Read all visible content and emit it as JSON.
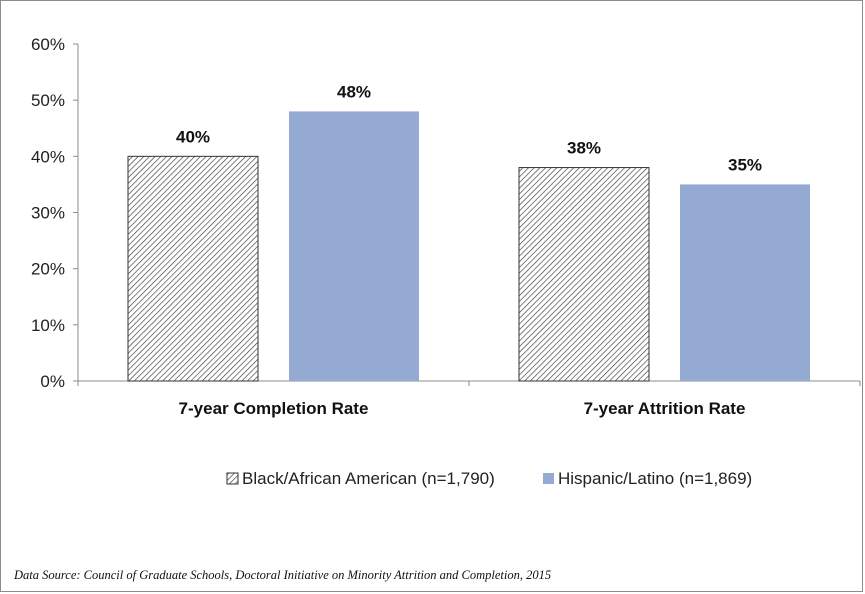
{
  "chart_data": {
    "type": "bar",
    "categories": [
      "7-year Completion Rate",
      "7-year Attrition Rate"
    ],
    "series": [
      {
        "name": "Black/African American (n=1,790)",
        "values": [
          40,
          38
        ],
        "labels": [
          "40%",
          "38%"
        ],
        "fill": "hatched",
        "color": "#2f2f2f"
      },
      {
        "name": "Hispanic/Latino (n=1,869)",
        "values": [
          48,
          35
        ],
        "labels": [
          "48%",
          "35%"
        ],
        "fill": "solid",
        "color": "#95aad2"
      }
    ],
    "y_ticks": [
      "0%",
      "10%",
      "20%",
      "30%",
      "40%",
      "50%",
      "60%"
    ],
    "ylim": [
      0,
      60
    ],
    "unit": "%",
    "grid": false,
    "legend_position": "bottom",
    "source": "Data Source:  Council of Graduate Schools, Doctoral Initiative on Minority Attrition and Completion, 2015"
  }
}
